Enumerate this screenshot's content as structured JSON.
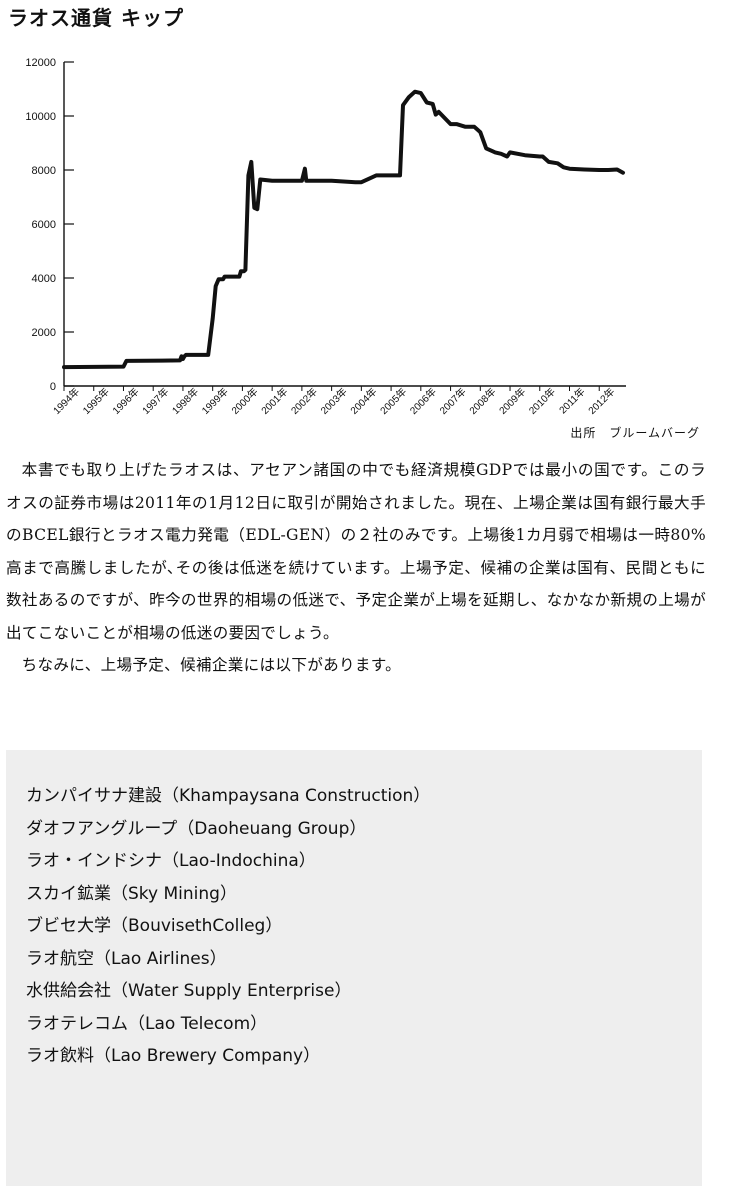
{
  "chart_data": {
    "type": "line",
    "title": "ラオス通貨 キップ",
    "source": "出所　ブルームバーグ",
    "xlabel": "",
    "ylabel": "",
    "ylim": [
      0,
      12000
    ],
    "xlim": [
      1994,
      2012.9
    ],
    "yticks": [
      "0",
      "2000",
      "4000",
      "6000",
      "8000",
      "10000",
      "12000"
    ],
    "xticks": [
      "1994年",
      "1995年",
      "1996年",
      "1997年",
      "1998年",
      "1999年",
      "2000年",
      "2001年",
      "2002年",
      "2003年",
      "2004年",
      "2005年",
      "2006年",
      "2007年",
      "2008年",
      "2009年",
      "2010年",
      "2011年",
      "2012年"
    ],
    "series": [
      {
        "name": "キップ",
        "x": [
          1994.0,
          1996.0,
          1996.1,
          1997.3,
          1997.9,
          1997.95,
          1998.0,
          1998.05,
          1998.1,
          1998.85,
          1999.0,
          1999.1,
          1999.2,
          1999.35,
          1999.4,
          1999.9,
          1999.95,
          2000.0,
          2000.05,
          2000.1,
          2000.2,
          2000.3,
          2000.4,
          2000.5,
          2000.6,
          2001.0,
          2001.5,
          2002.0,
          2002.1,
          2002.15,
          2002.3,
          2003.0,
          2003.8,
          2004.0,
          2004.5,
          2005.0,
          2005.3,
          2005.4,
          2005.6,
          2005.8,
          2006.0,
          2006.2,
          2006.4,
          2006.5,
          2006.6,
          2007.0,
          2007.2,
          2007.5,
          2007.8,
          2008.0,
          2008.2,
          2008.4,
          2008.5,
          2008.7,
          2008.9,
          2009.0,
          2009.5,
          2010.0,
          2010.1,
          2010.3,
          2010.6,
          2010.8,
          2011.0,
          2011.5,
          2012.0,
          2012.3,
          2012.6,
          2012.8
        ],
        "values": [
          700,
          720,
          930,
          940,
          950,
          1100,
          1000,
          1100,
          1150,
          1150,
          2500,
          3700,
          3950,
          3950,
          4050,
          4050,
          4250,
          4250,
          4250,
          4300,
          7800,
          8300,
          6600,
          6550,
          7650,
          7600,
          7600,
          7600,
          8050,
          7600,
          7600,
          7600,
          7550,
          7550,
          7800,
          7800,
          7800,
          10400,
          10700,
          10900,
          10850,
          10500,
          10450,
          10050,
          10150,
          9700,
          9700,
          9600,
          9600,
          9400,
          8800,
          8700,
          8650,
          8600,
          8500,
          8650,
          8550,
          8500,
          8500,
          8300,
          8250,
          8100,
          8050,
          8020,
          8000,
          8000,
          8020,
          7900
        ]
      }
    ]
  },
  "body": {
    "paragraphs": [
      "本書でも取り上げたラオスは、アセアン諸国の中でも経済規模GDPでは最小の国です。このラオスの証券市場は2011年の1月12日に取引が開始されました。現在、上場企業は国有銀行最大手のBCEL銀行とラオス電力発電（EDL-GEN）の２社のみです。上場後1カ月弱で相場は一時80%高まで高騰しましたが､その後は低迷を続けています。上場予定、候補の企業は国有、民間ともに数社あるのですが、昨今の世界的相場の低迷で、予定企業が上場を延期し、なかなか新規の上場が出てこないことが相場の低迷の要因でしょう。",
      "ちなみに、上場予定、候補企業には以下があります。"
    ]
  },
  "companies": [
    "カンパイサナ建設（Khampaysana Construction）",
    "ダオフアングループ（Daoheuang Group）",
    "ラオ・インドシナ（Lao-Indochina）",
    "スカイ鉱業（Sky Mining）",
    "ブビセ大学（BouvisethColleg）",
    "ラオ航空（Lao Airlines）",
    "水供給会社（Water Supply Enterprise）",
    "ラオテレコム（Lao Telecom）",
    "ラオ飲料（Lao Brewery Company）"
  ],
  "colors": {
    "line": "#111111",
    "box_bg": "#eeeeee"
  }
}
